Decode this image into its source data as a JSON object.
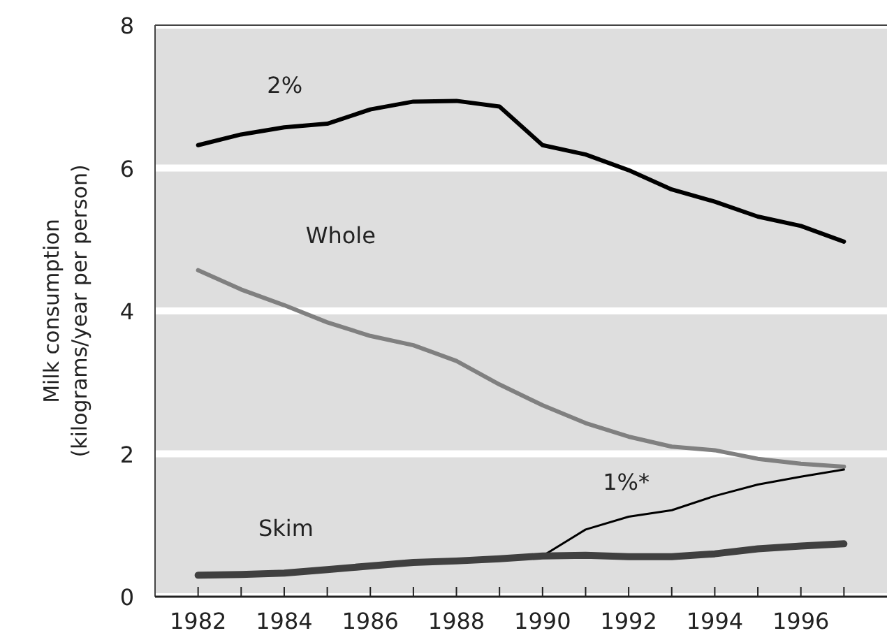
{
  "chart_data": {
    "type": "line",
    "ylabel": "Milk consumption\n(kilograms/year per person)",
    "x": [
      1982,
      1983,
      1984,
      1985,
      1986,
      1987,
      1988,
      1989,
      1990,
      1991,
      1992,
      1993,
      1994,
      1995,
      1996,
      1997
    ],
    "series": [
      {
        "name": "2%",
        "color": "#000000",
        "values": [
          6.32,
          6.47,
          6.57,
          6.62,
          6.82,
          6.93,
          6.94,
          6.86,
          6.32,
          6.19,
          5.97,
          5.7,
          5.53,
          5.32,
          5.19,
          4.97
        ]
      },
      {
        "name": "Whole",
        "color": "#808080",
        "values": [
          4.57,
          4.3,
          4.08,
          3.84,
          3.65,
          3.52,
          3.3,
          2.97,
          2.68,
          2.43,
          2.24,
          2.1,
          2.05,
          1.93,
          1.86,
          1.82
        ]
      },
      {
        "name": "1%*",
        "color": "#000000",
        "values": [
          null,
          null,
          null,
          null,
          null,
          null,
          null,
          null,
          0.57,
          0.94,
          1.12,
          1.21,
          1.41,
          1.57,
          1.68,
          1.78
        ]
      },
      {
        "name": "Skim",
        "color": "#404040",
        "values": [
          0.3,
          0.31,
          0.33,
          0.38,
          0.43,
          0.48,
          0.5,
          0.53,
          0.57,
          0.58,
          0.56,
          0.56,
          0.6,
          0.67,
          0.71,
          0.74
        ]
      }
    ],
    "xlim": [
      1981,
      1998
    ],
    "ylim": [
      0,
      8
    ],
    "xticks": [
      1982,
      {
        "value": 1983,
        "label": null
      },
      1984,
      {
        "value": 1985,
        "label": null
      },
      1986,
      {
        "value": 1987,
        "label": null
      },
      1988,
      {
        "value": 1989,
        "label": null
      },
      1990,
      {
        "value": 1991,
        "label": null
      },
      1992,
      {
        "value": 1993,
        "label": null
      },
      1994,
      {
        "value": 1995,
        "label": null
      },
      1996,
      {
        "value": 1997,
        "label": null
      }
    ],
    "yticks": [
      0,
      2,
      4,
      6,
      8
    ],
    "grid": "y"
  }
}
